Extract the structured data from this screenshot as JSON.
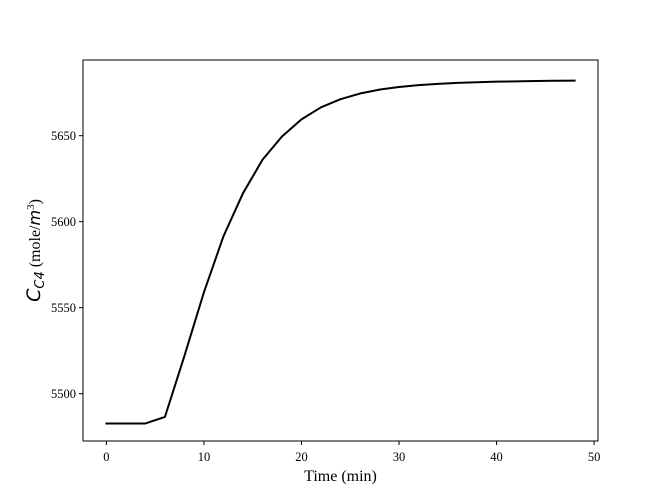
{
  "chart_data": {
    "type": "line",
    "xlabel": "Time (min)",
    "ylabel": {
      "symbol": "C",
      "subscript": "C4",
      "unit_prefix": " (mole/",
      "unit_symbol": "m",
      "unit_exponent": "3",
      "unit_suffix": ")"
    },
    "xlim": [
      -2.4,
      50.4
    ],
    "ylim": [
      5472.5,
      5694
    ],
    "xticks": [
      0,
      10,
      20,
      30,
      40,
      50
    ],
    "yticks": [
      5500,
      5550,
      5600,
      5650
    ],
    "grid": false,
    "line_color": "#000000",
    "series": [
      {
        "x": [
          0,
          2,
          4,
          6,
          8,
          10,
          12,
          14,
          16,
          18,
          20,
          22,
          24,
          26,
          28,
          30,
          32,
          34,
          36,
          38,
          40,
          42,
          44,
          46,
          48
        ],
        "y": [
          5482.7,
          5482.7,
          5482.7,
          5486.5,
          5522,
          5559,
          5591.5,
          5616.5,
          5636,
          5649.5,
          5659.5,
          5666.5,
          5671.2,
          5674.5,
          5676.8,
          5678.3,
          5679.4,
          5680.1,
          5680.7,
          5681.1,
          5681.4,
          5681.6,
          5681.8,
          5681.9,
          5682
        ]
      }
    ]
  }
}
